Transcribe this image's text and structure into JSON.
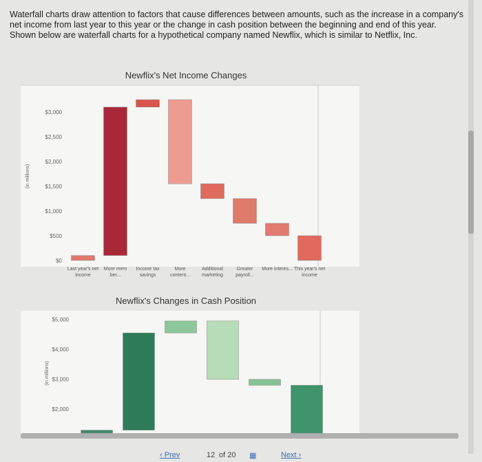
{
  "intro": "Waterfall charts draw attention to factors that cause differences between amounts, such as the increase in a company's net income from last year to this year or the change in cash position between the beginning and end of this year. Shown below are waterfall charts for a hypothetical company named Newflix, which is similar to Netflix, Inc.",
  "chart_data": [
    {
      "type": "waterfall",
      "title": "Newflix's Net Income Changes",
      "y_label": "(in millions)",
      "categories": [
        "Last year's net income",
        "More mem ber...",
        "Income tax savings",
        "More content...",
        "Additional marketing",
        "Greater payroll...",
        "More interes...",
        "This year's net income"
      ],
      "values": [
        100,
        3000,
        150,
        -1700,
        -300,
        -500,
        -250,
        500
      ],
      "colors": [
        "#e0786a",
        "#a8283a",
        "#d9564e",
        "#ee9c92",
        "#e06a5c",
        "#e07a6a",
        "#e27a70",
        "#e16a5e"
      ],
      "ylim": [
        -100,
        3500
      ],
      "yticks": [
        {
          "value": 0,
          "label": "$0"
        },
        {
          "value": 500,
          "label": "$500"
        },
        {
          "value": 1000,
          "label": "$1,000"
        },
        {
          "value": 1500,
          "label": "$1,500"
        },
        {
          "value": 2000,
          "label": "$2,000"
        },
        {
          "value": 2500,
          "label": "$2,500"
        },
        {
          "value": 3000,
          "label": "$3,000"
        }
      ]
    },
    {
      "type": "waterfall",
      "title": "Newflix's Changes in Cash Position",
      "y_label": "(in millions)",
      "categories": [
        null,
        null,
        null,
        null,
        null,
        null
      ],
      "values": [
        1300,
        3250,
        400,
        -1950,
        -200,
        2800
      ],
      "colors": [
        "#3f8a68",
        "#2f7c5a",
        "#8cc79c",
        "#b6dcb8",
        "#86c294",
        "#3f946c"
      ],
      "ylim": [
        1200,
        5200
      ],
      "yticks": [
        {
          "value": 2000,
          "label": "$2,000"
        },
        {
          "value": 3000,
          "label": "$3,000"
        },
        {
          "value": 4000,
          "label": "$4,000"
        },
        {
          "value": 5000,
          "label": "$5,000"
        }
      ]
    }
  ],
  "nav": {
    "prev": "Prev",
    "page": "12",
    "of": "of 20",
    "next": "Next"
  }
}
